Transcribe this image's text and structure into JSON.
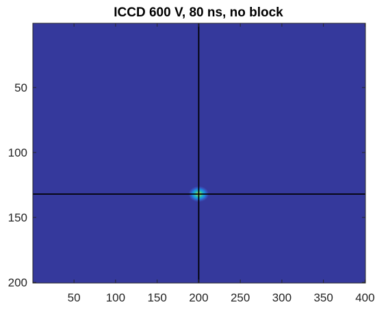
{
  "chart_data": {
    "type": "heatmap",
    "title": "ICCD 600 V, 80 ns, no block",
    "xlim": [
      1,
      400
    ],
    "ylim": [
      1,
      200
    ],
    "y_reversed": true,
    "x_ticks": [
      "50",
      "100",
      "150",
      "200",
      "250",
      "300",
      "350",
      "400"
    ],
    "y_ticks": [
      "50",
      "100",
      "150",
      "200"
    ],
    "colormap": "parula",
    "background_color": "#35399c",
    "peak": {
      "x": 200,
      "y": 132,
      "spread_x": 4,
      "spread_y": 4
    },
    "crosshair": {
      "x": 200,
      "y": 132,
      "color": "#000000"
    },
    "grid": false,
    "legend": "none"
  }
}
